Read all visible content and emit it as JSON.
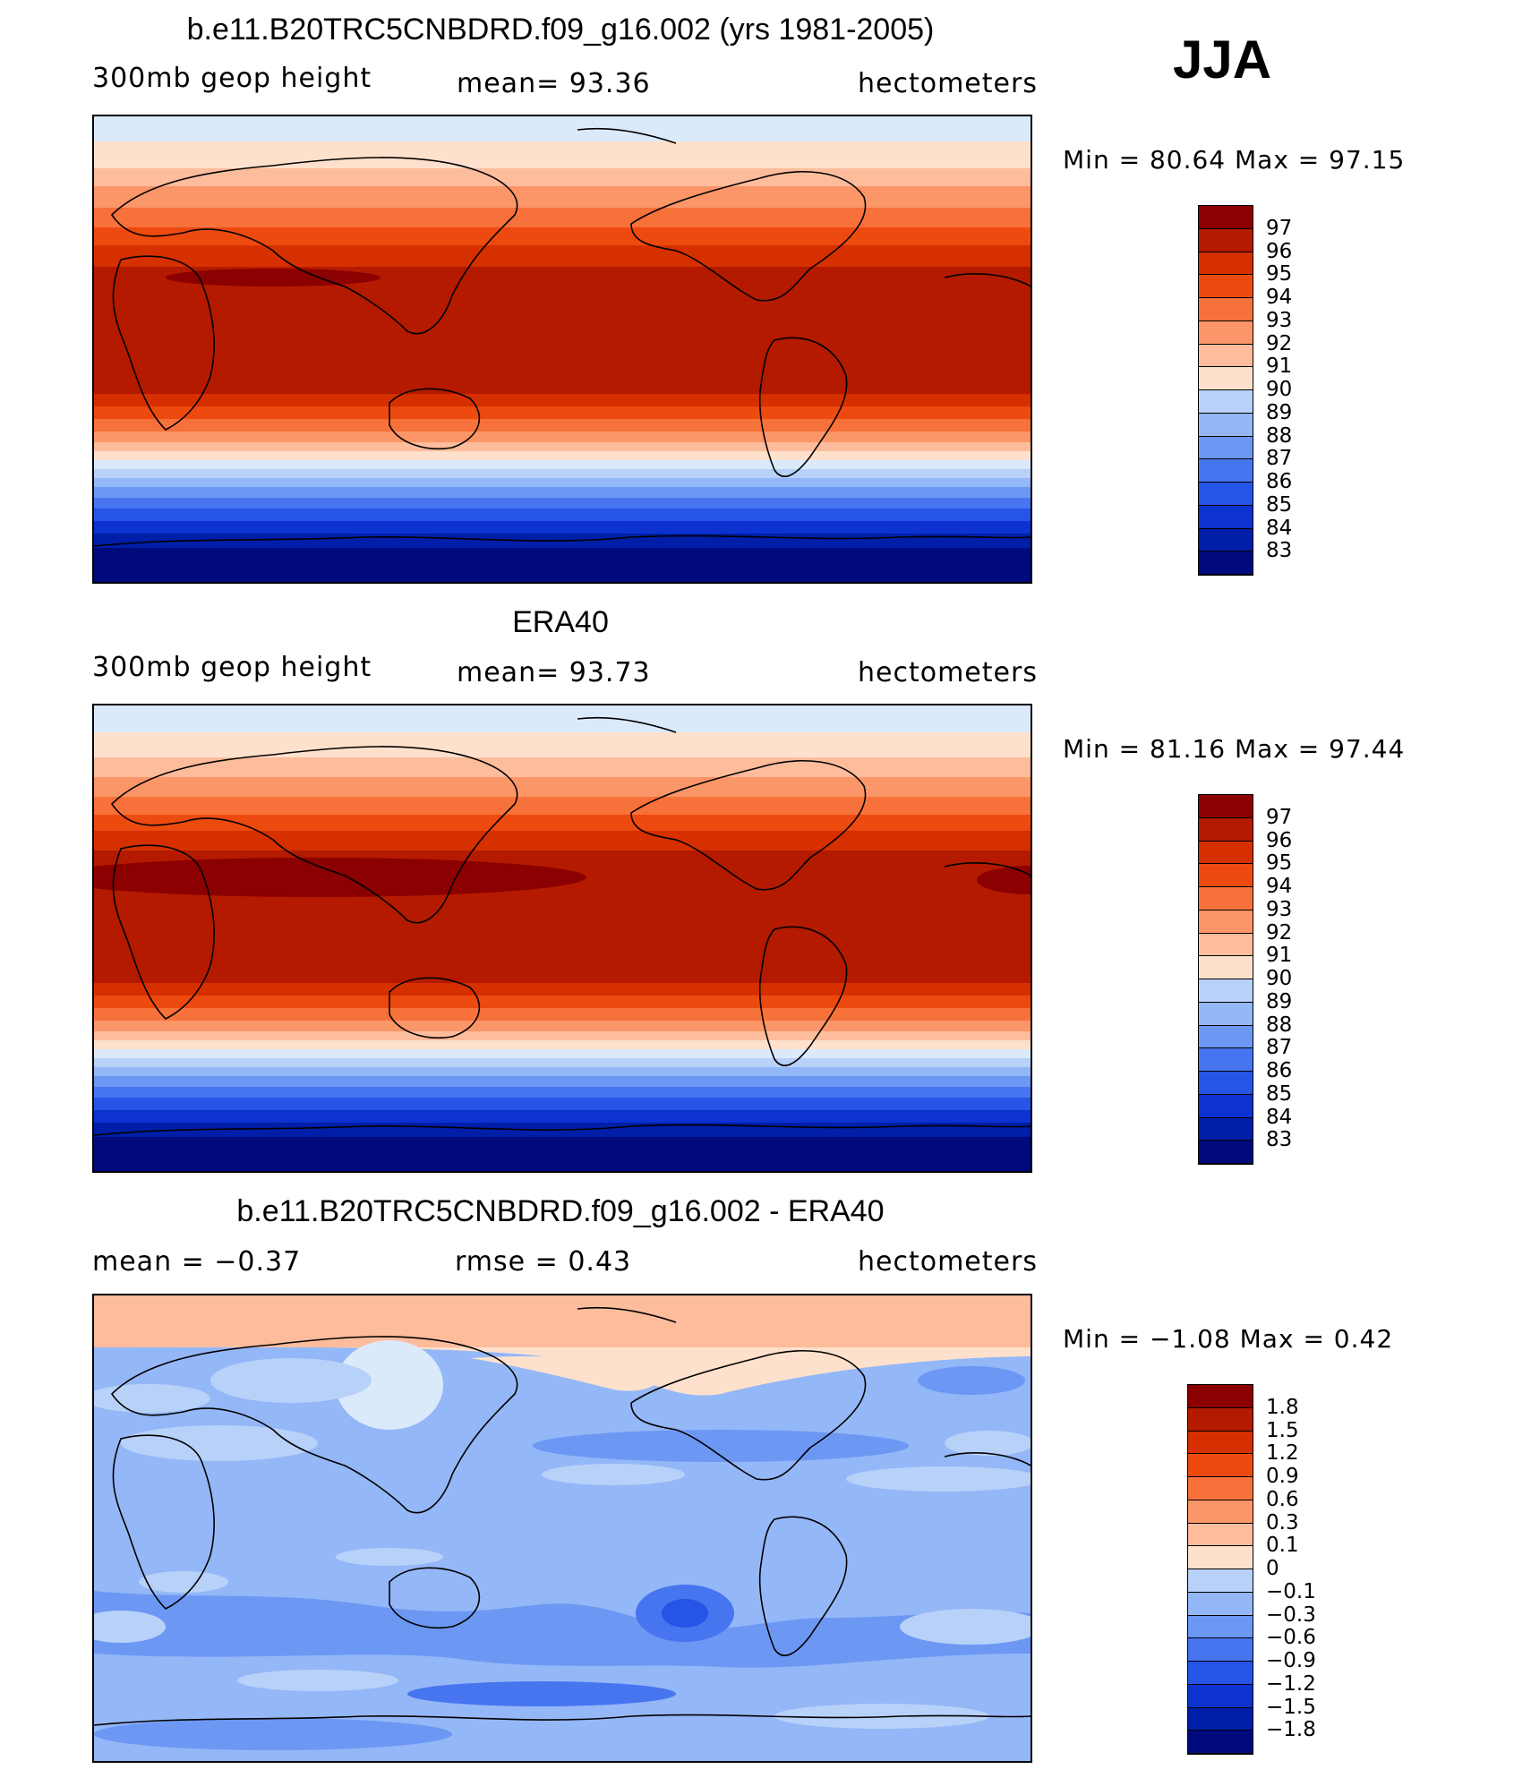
{
  "season": "JJA",
  "colors": {
    "levels_red": [
      "#8b0000",
      "#b31a00",
      "#d63000",
      "#ed4a10",
      "#f7713a",
      "#fb9668",
      "#fdbc9c",
      "#fee1cc"
    ],
    "levels_blue": [
      "#dbeafb",
      "#b8d1f9",
      "#94b7f7",
      "#6c98f4",
      "#4775ef",
      "#2554e6",
      "#0c33cf",
      "#001ea8",
      "#000a7c"
    ]
  },
  "panels": [
    {
      "title": "b.e11.B20TRC5CNBDRD.f09_g16.002 (yrs 1981-2005)",
      "left_label": "300mb  geop  height",
      "center_label": "mean=   93.36",
      "right_label": "hectometers",
      "min_max": "Min  =    80.64  Max  =    97.15",
      "colorbar_labels": [
        "97",
        "96",
        "95",
        "94",
        "93",
        "92",
        "91",
        "90",
        "89",
        "88",
        "87",
        "86",
        "85",
        "84",
        "83"
      ],
      "map_kind": "absolute"
    },
    {
      "title": "ERA40",
      "left_label": "300mb  geop  height",
      "center_label": "mean=   93.73",
      "right_label": "hectometers",
      "min_max": "Min  =    81.16  Max  =    97.44",
      "colorbar_labels": [
        "97",
        "96",
        "95",
        "94",
        "93",
        "92",
        "91",
        "90",
        "89",
        "88",
        "87",
        "86",
        "85",
        "84",
        "83"
      ],
      "map_kind": "absolute"
    },
    {
      "title": "b.e11.B20TRC5CNBDRD.f09_g16.002 - ERA40",
      "left_label": "mean  =    −0.37",
      "center_label": "rmse  =     0.43",
      "right_label": "hectometers",
      "min_max": "Min  =   −1.08  Max  =     0.42",
      "colorbar_labels": [
        "1.8",
        "1.5",
        "1.2",
        "0.9",
        "0.6",
        "0.3",
        "0.1",
        "0",
        "−0.1",
        "−0.3",
        "−0.6",
        "−0.9",
        "−1.2",
        "−1.5",
        "−1.8"
      ],
      "map_kind": "difference"
    }
  ]
}
